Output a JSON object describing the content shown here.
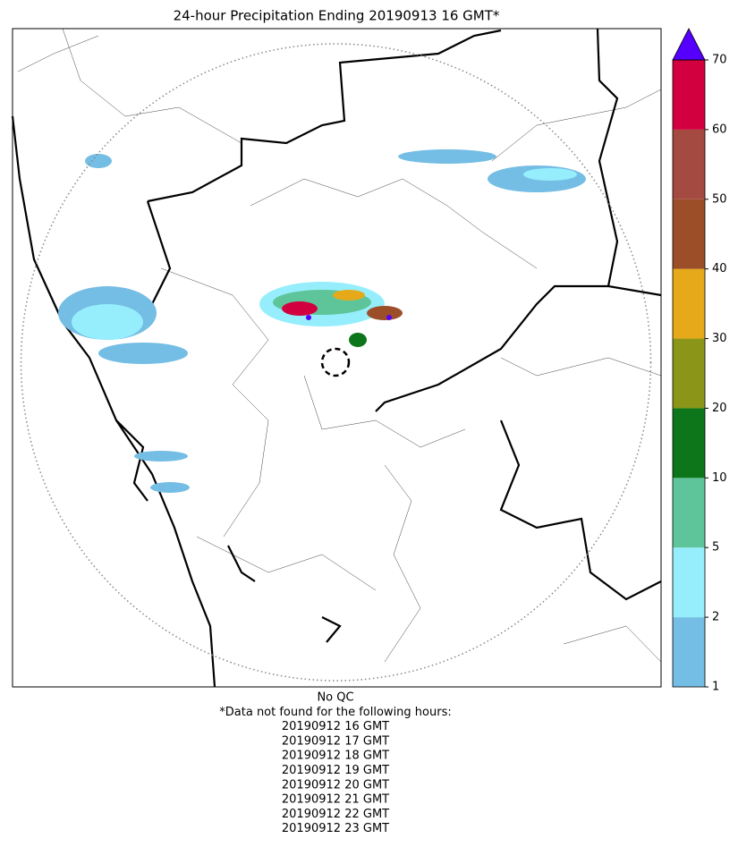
{
  "title": "24-hour Precipitation Ending 20190913 16 GMT*",
  "notes": [
    "No QC",
    "*Data not found for the following hours:",
    "20190912 16 GMT",
    "20190912 17 GMT",
    "20190912 18 GMT",
    "20190912 19 GMT",
    "20190912 20 GMT",
    "20190912 21 GMT",
    "20190912 22 GMT",
    "20190912 23 GMT"
  ],
  "colorbar": {
    "levels": [
      1,
      2,
      5,
      10,
      20,
      30,
      40,
      50,
      60,
      70
    ],
    "colors": [
      "#74bde4",
      "#96eefc",
      "#5ec59a",
      "#0e761a",
      "#8b9618",
      "#e6a91a",
      "#9b4e27",
      "#a44a41",
      "#d2003f"
    ],
    "extend_color": "#5500ff"
  }
}
